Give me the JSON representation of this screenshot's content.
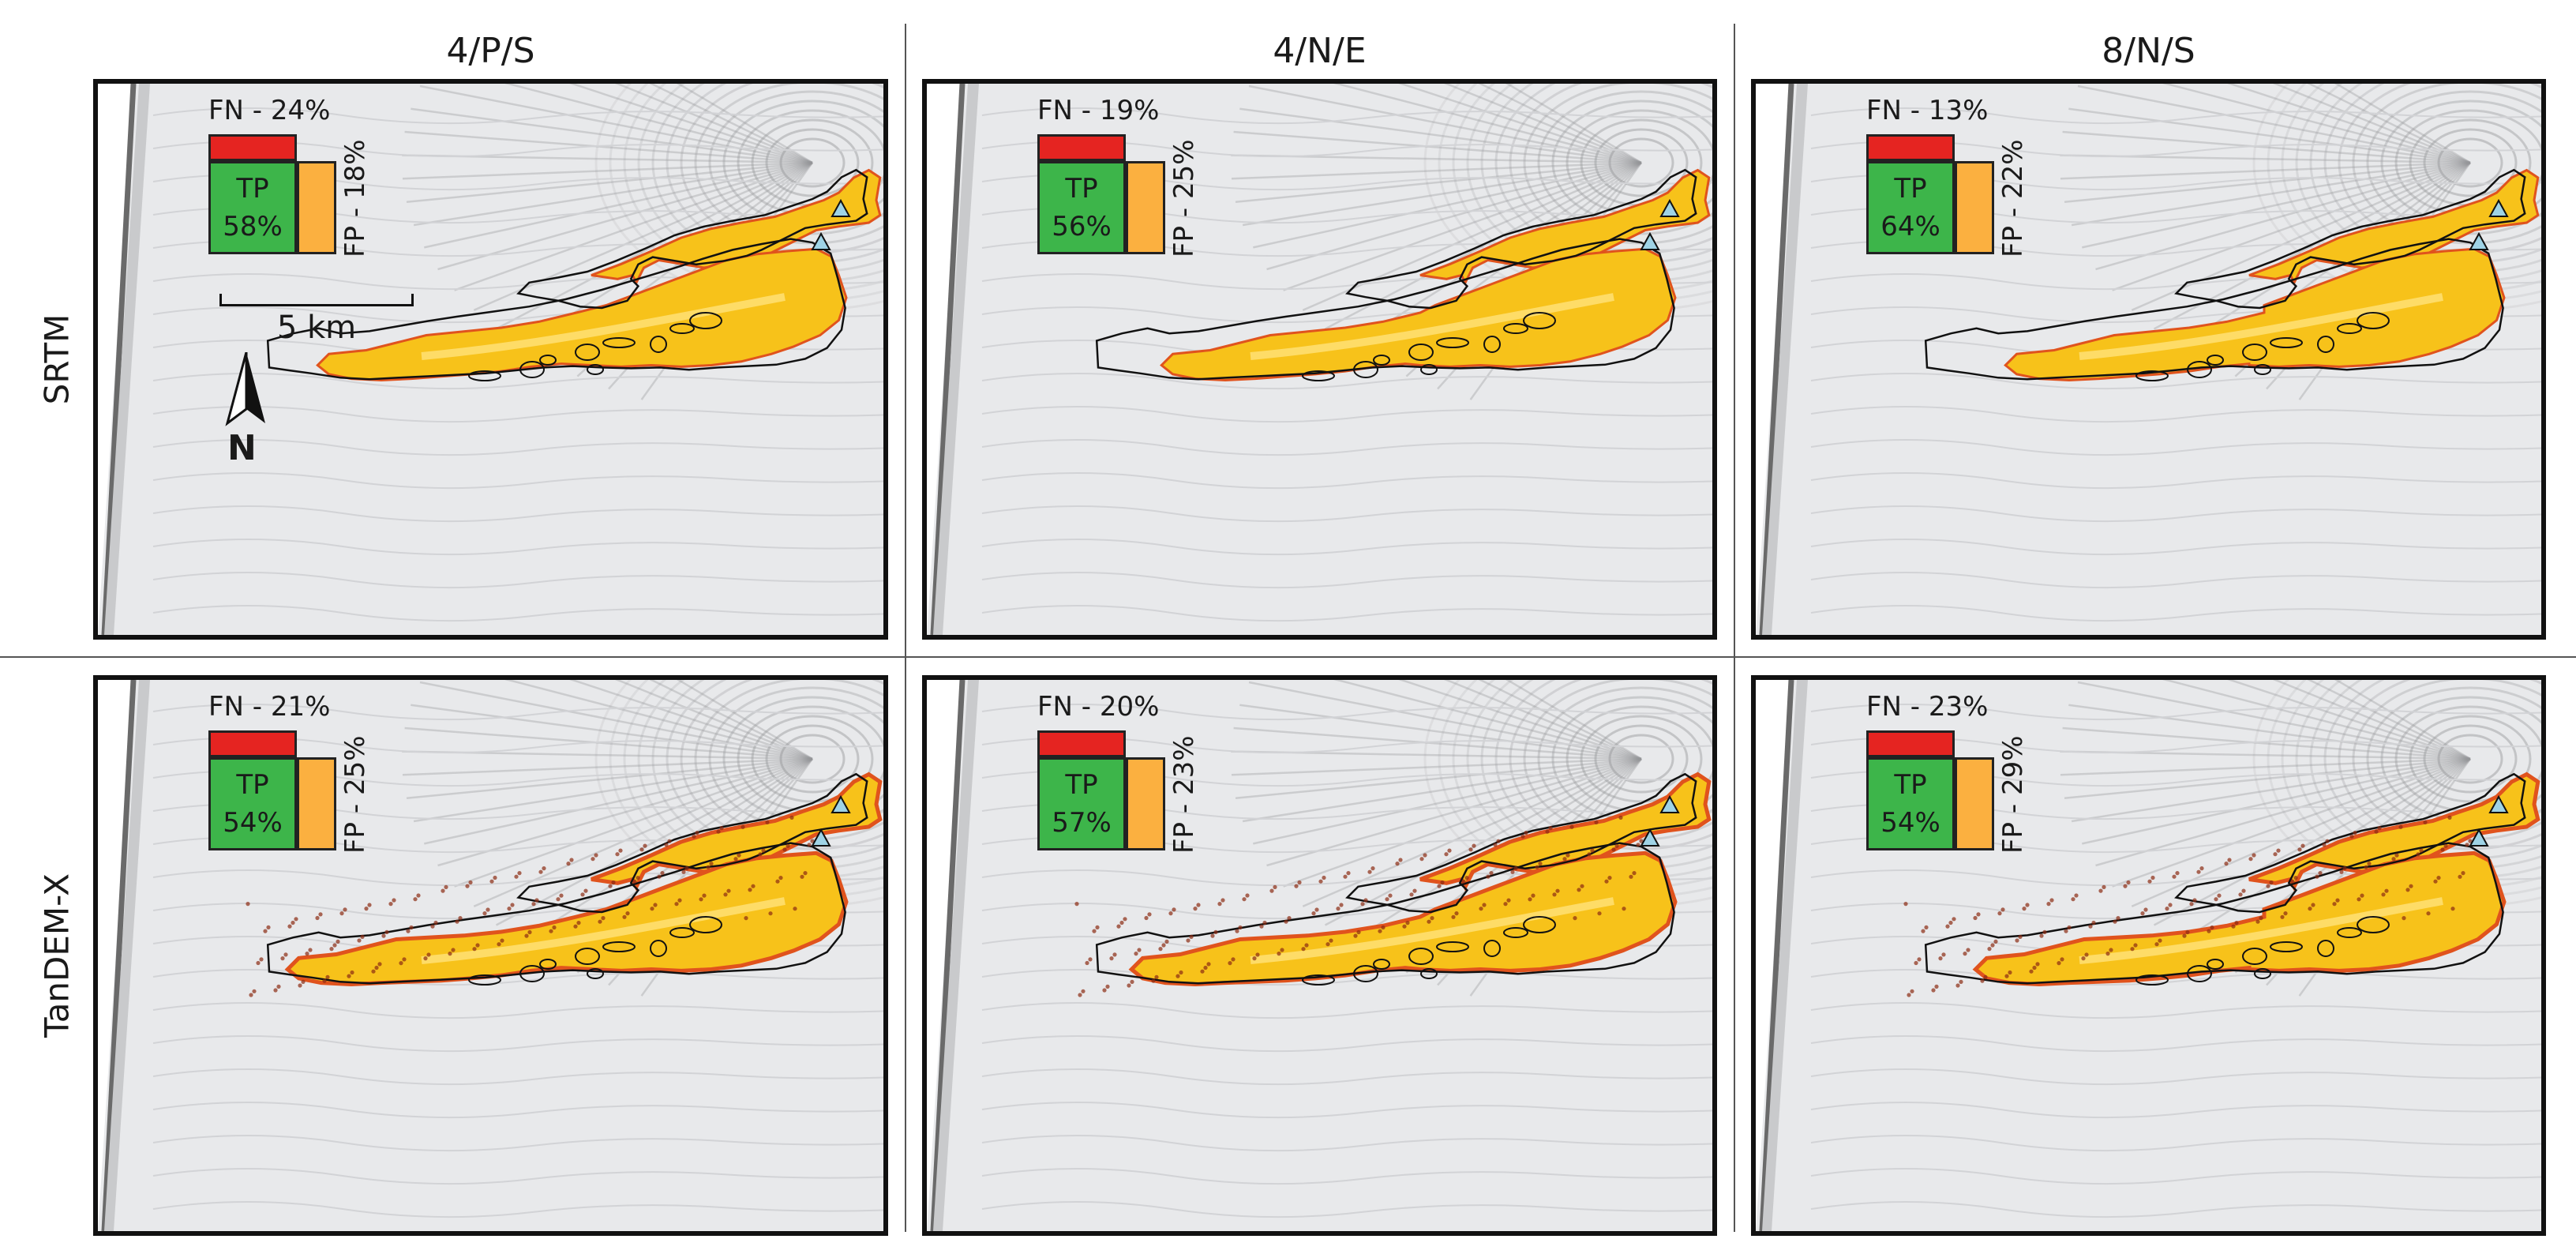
{
  "columns": [
    "4/P/S",
    "4/N/E",
    "8/N/S"
  ],
  "rows": [
    "SRTM",
    "TanDEM-X"
  ],
  "panels": [
    [
      {
        "fn": "FN - 24%",
        "tp": "TP",
        "tp_pct": "58%",
        "fp": "FP - 18%"
      },
      {
        "fn": "FN - 19%",
        "tp": "TP",
        "tp_pct": "56%",
        "fp": "FP - 25%"
      },
      {
        "fn": "FN - 13%",
        "tp": "TP",
        "tp_pct": "64%",
        "fp": "FP - 22%"
      }
    ],
    [
      {
        "fn": "FN - 21%",
        "tp": "TP",
        "tp_pct": "54%",
        "fp": "FP - 25%"
      },
      {
        "fn": "FN - 20%",
        "tp": "TP",
        "tp_pct": "57%",
        "fp": "FP - 23%"
      },
      {
        "fn": "FN - 23%",
        "tp": "TP",
        "tp_pct": "54%",
        "fp": "FP - 29%"
      }
    ]
  ],
  "scale_label": "5 km",
  "north_label": "N",
  "colors": {
    "true_positive": "#3db54a",
    "false_negative": "#e52421",
    "false_positive": "#fbb040",
    "flow_fill": "#f7c21a",
    "flow_edge": "#e0531d",
    "vent": "#9fd3e6",
    "terrain": "#e6e7e9"
  },
  "icons": {
    "north_arrow": "north-arrow-icon",
    "vent": "vent-triangle-icon"
  }
}
